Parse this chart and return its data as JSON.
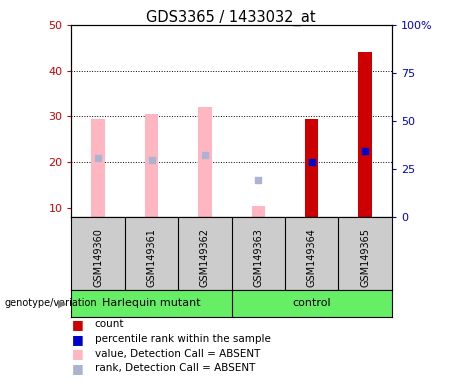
{
  "title": "GDS3365 / 1433032_at",
  "samples": [
    "GSM149360",
    "GSM149361",
    "GSM149362",
    "GSM149363",
    "GSM149364",
    "GSM149365"
  ],
  "ylim_left": [
    8,
    50
  ],
  "ylim_right": [
    0,
    100
  ],
  "yticks_left": [
    10,
    20,
    30,
    40,
    50
  ],
  "yticks_right": [
    0,
    25,
    50,
    75,
    100
  ],
  "ytick_labels_right": [
    "0",
    "25",
    "50",
    "75",
    "100%"
  ],
  "bar_absent_color": "#ffb6c1",
  "bar_present_color": "#cc0000",
  "rank_absent_color": "#aab4d0",
  "rank_present_color": "#0000cc",
  "absent_values": [
    29.5,
    30.5,
    32.0,
    10.5,
    null,
    null
  ],
  "absent_ranks": [
    21.0,
    20.5,
    21.5,
    null,
    null,
    null
  ],
  "present_values": [
    null,
    null,
    null,
    null,
    29.5,
    44.0
  ],
  "present_ranks": [
    null,
    null,
    null,
    null,
    20.0,
    22.5
  ],
  "dot_absent_rank_gsm363": 16.0,
  "dot_absent_rank_gsm363_idx": 3,
  "bg_color": "#cccccc",
  "plot_bg": "#ffffff",
  "left_color": "#cc0000",
  "right_color": "#0000cc",
  "green_color": "#66ee66",
  "bar_width": 0.25,
  "rank_dot_size": 25,
  "group_split": 2.5,
  "group1_label": "Harlequin mutant",
  "group2_label": "control",
  "legend_items": [
    {
      "color": "#cc0000",
      "label": "count"
    },
    {
      "color": "#0000cc",
      "label": "percentile rank within the sample"
    },
    {
      "color": "#ffb6c1",
      "label": "value, Detection Call = ABSENT"
    },
    {
      "color": "#aab4d0",
      "label": "rank, Detection Call = ABSENT"
    }
  ]
}
